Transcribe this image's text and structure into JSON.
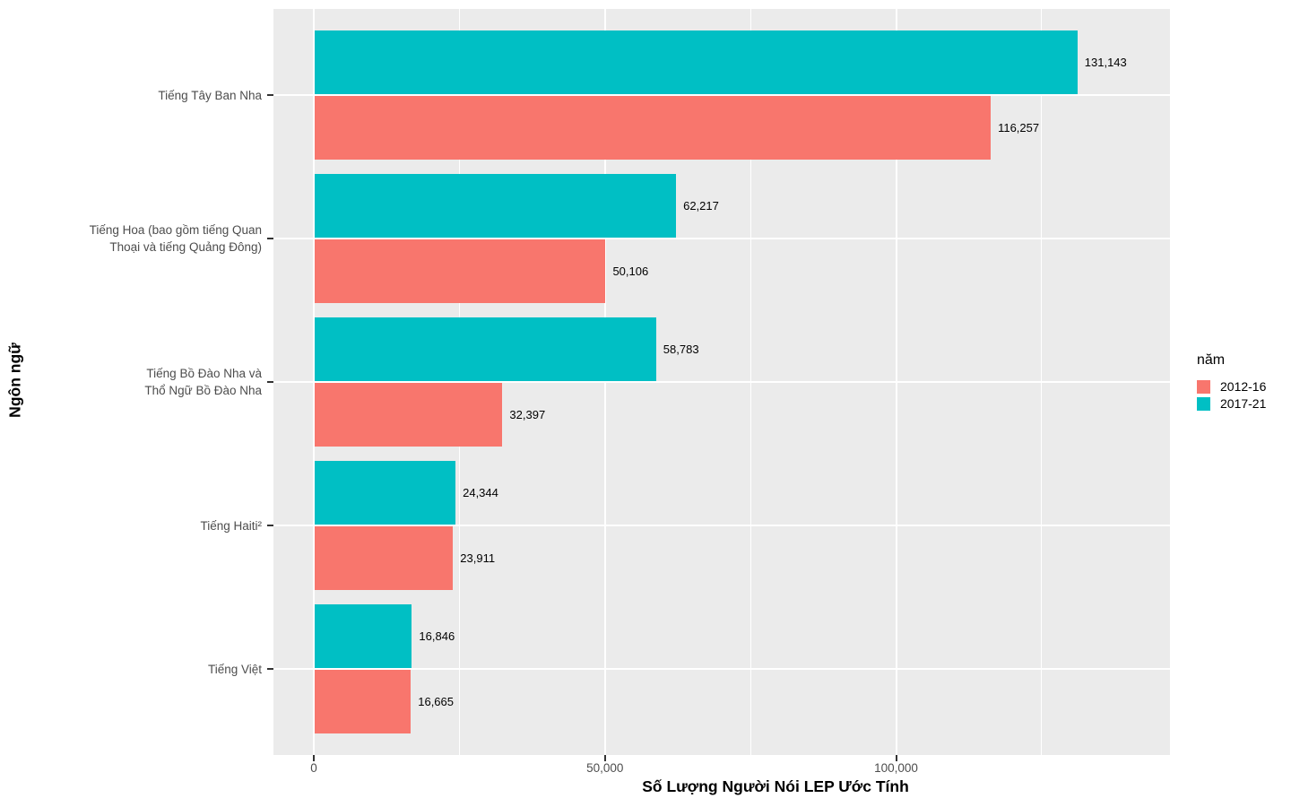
{
  "chart_data": {
    "type": "bar",
    "orientation": "horizontal",
    "xlabel": "Số Lượng Người Nói LEP Ước Tính",
    "ylabel": "Ngôn ngữ",
    "xlim": [
      0,
      147000
    ],
    "grid": true,
    "panel_background": "#EBEBEB",
    "gridline_color": "#FFFFFF",
    "legend_position": "right",
    "categories": [
      "Tiếng Tây Ban Nha",
      "Tiếng Hoa (bao gồm tiếng Quan Thoại và tiếng Quảng Đông)",
      "Tiếng Bồ Đào Nha và Thổ Ngữ Bồ Đào Nha",
      "Tiếng Haiti²",
      "Tiếng Việt"
    ],
    "category_label_lines": [
      [
        "Tiếng Tây Ban Nha"
      ],
      [
        "Tiếng Hoa (bao gồm tiếng Quan",
        "Thoại và tiếng Quảng Đông)"
      ],
      [
        "Tiếng Bồ Đào Nha và",
        "Thổ Ngữ Bồ Đào Nha"
      ],
      [
        "Tiếng Haiti²"
      ],
      [
        "Tiếng Việt"
      ]
    ],
    "series": [
      {
        "name": "2012-16",
        "color": "#F8766D",
        "group_position": "below",
        "values": [
          116257,
          50106,
          32397,
          23911,
          16665
        ],
        "value_labels": [
          "116,257",
          "50,106",
          "32,397",
          "23,911",
          "16,665"
        ]
      },
      {
        "name": "2017-21",
        "color": "#00BFC4",
        "group_position": "above",
        "values": [
          131143,
          62217,
          58783,
          24344,
          16846
        ],
        "value_labels": [
          "131,143",
          "62,217",
          "58,783",
          "24,344",
          "16,846"
        ]
      }
    ],
    "x_major_ticks": [
      {
        "value": 0,
        "label": "0"
      },
      {
        "value": 50000,
        "label": "50,000"
      },
      {
        "value": 100000,
        "label": "100,000"
      }
    ],
    "x_minor_gridlines": [
      25000,
      75000,
      125000
    ],
    "legend": {
      "title": "năm",
      "entries": [
        {
          "label": "2012-16",
          "color": "#F8766D"
        },
        {
          "label": "2017-21",
          "color": "#00BFC4"
        }
      ]
    }
  }
}
